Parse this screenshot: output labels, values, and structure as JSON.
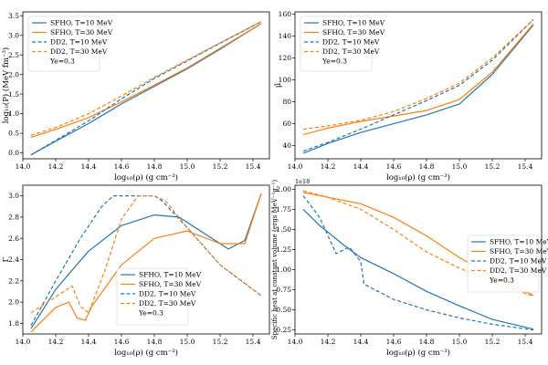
{
  "colors": {
    "blue": "#1f77b4",
    "orange": "#ff7f0e"
  },
  "legend_entries": [
    {
      "label": "SFHO, T=10 MeV",
      "color": "#1f77b4",
      "dash": false
    },
    {
      "label": "SFHO, T=30 MeV",
      "color": "#ff7f0e",
      "dash": false
    },
    {
      "label": "DD2, T=10 MeV",
      "color": "#1f77b4",
      "dash": true
    },
    {
      "label": "DD2, T=30 MeV",
      "color": "#ff7f0e",
      "dash": true
    }
  ],
  "legend_note": "Ye=0.3",
  "chart_data": [
    {
      "type": "line",
      "xlabel": "log₁₀(ρ) (g cm⁻³)",
      "ylabel": "log₁₀(P) (MeV fm⁻³)",
      "xlim": [
        14.0,
        15.5
      ],
      "ylim": [
        -0.15,
        3.6
      ],
      "xticks": [
        "14.0",
        "14.2",
        "14.4",
        "14.6",
        "14.8",
        "15.0",
        "15.2",
        "15.4"
      ],
      "yticks": [
        "0.0",
        "0.5",
        "1.0",
        "1.5",
        "2.0",
        "2.5",
        "3.0",
        "3.5"
      ],
      "legend_position": "upper-left",
      "series": [
        {
          "name": "SFHO, T=10 MeV",
          "x": [
            14.05,
            14.2,
            14.4,
            14.6,
            14.8,
            15.0,
            15.2,
            15.45
          ],
          "y": [
            -0.05,
            0.3,
            0.75,
            1.25,
            1.7,
            2.15,
            2.65,
            3.3
          ]
        },
        {
          "name": "SFHO, T=30 MeV",
          "x": [
            14.05,
            14.2,
            14.4,
            14.6,
            14.8,
            15.0,
            15.2,
            15.45
          ],
          "y": [
            0.4,
            0.6,
            0.9,
            1.3,
            1.73,
            2.17,
            2.67,
            3.3
          ]
        },
        {
          "name": "DD2, T=10 MeV",
          "x": [
            14.05,
            14.2,
            14.4,
            14.6,
            14.8,
            15.0,
            15.2,
            15.45
          ],
          "y": [
            -0.05,
            0.32,
            0.82,
            1.38,
            1.9,
            2.35,
            2.8,
            3.35
          ]
        },
        {
          "name": "DD2, T=30 MeV",
          "x": [
            14.05,
            14.2,
            14.4,
            14.6,
            14.8,
            15.0,
            15.2,
            15.45
          ],
          "y": [
            0.45,
            0.65,
            1.0,
            1.45,
            1.93,
            2.37,
            2.81,
            3.35
          ]
        }
      ]
    },
    {
      "type": "line",
      "xlabel": "log₁₀(ρ) (g cm⁻³)",
      "ylabel": "μ̂",
      "xlim": [
        14.0,
        15.5
      ],
      "ylim": [
        28,
        162
      ],
      "xticks": [
        "14.0",
        "14.2",
        "14.4",
        "14.6",
        "14.8",
        "15.0",
        "15.2",
        "15.4"
      ],
      "yticks": [
        "40",
        "60",
        "80",
        "100",
        "120",
        "140",
        "160"
      ],
      "legend_position": "upper-left",
      "series": [
        {
          "name": "SFHO, T=10 MeV",
          "x": [
            14.05,
            14.2,
            14.4,
            14.6,
            14.8,
            15.0,
            15.2,
            15.45
          ],
          "y": [
            33,
            42,
            52,
            60,
            68,
            78,
            105,
            150
          ]
        },
        {
          "name": "SFHO, T=30 MeV",
          "x": [
            14.05,
            14.2,
            14.4,
            14.6,
            14.8,
            15.0,
            15.2,
            15.45
          ],
          "y": [
            50,
            56,
            62,
            67,
            72,
            82,
            107,
            151
          ]
        },
        {
          "name": "DD2, T=10 MeV",
          "x": [
            14.05,
            14.2,
            14.4,
            14.6,
            14.8,
            15.0,
            15.2,
            15.45
          ],
          "y": [
            35,
            43,
            55,
            68,
            81,
            95,
            118,
            155
          ]
        },
        {
          "name": "DD2, T=30 MeV",
          "x": [
            14.05,
            14.2,
            14.4,
            14.6,
            14.8,
            15.0,
            15.2,
            15.45
          ],
          "y": [
            55,
            58,
            63,
            71,
            83,
            97,
            120,
            155
          ]
        }
      ]
    },
    {
      "type": "line",
      "xlabel": "log₁₀(ρ) (g cm⁻³)",
      "ylabel": "Γ",
      "xlim": [
        14.0,
        15.5
      ],
      "ylim": [
        1.7,
        3.1
      ],
      "xticks": [
        "14.0",
        "14.2",
        "14.4",
        "14.6",
        "14.8",
        "15.0",
        "15.2",
        "15.4"
      ],
      "yticks": [
        "1.8",
        "2.0",
        "2.2",
        "2.4",
        "2.6",
        "2.8",
        "3.0"
      ],
      "legend_position": "lower-center",
      "series": [
        {
          "name": "SFHO, T=10 MeV",
          "x": [
            14.05,
            14.2,
            14.4,
            14.6,
            14.8,
            14.95,
            15.1,
            15.25,
            15.35,
            15.45
          ],
          "y": [
            1.75,
            2.12,
            2.48,
            2.72,
            2.82,
            2.8,
            2.65,
            2.5,
            2.58,
            3.02
          ]
        },
        {
          "name": "SFHO, T=30 MeV",
          "x": [
            14.05,
            14.2,
            14.28,
            14.33,
            14.38,
            14.42,
            14.6,
            14.8,
            15.0,
            15.2,
            15.35,
            15.45
          ],
          "y": [
            1.72,
            1.95,
            2.0,
            1.85,
            1.83,
            1.96,
            2.35,
            2.6,
            2.67,
            2.55,
            2.55,
            3.02
          ]
        },
        {
          "name": "DD2, T=10 MeV",
          "x": [
            14.05,
            14.2,
            14.35,
            14.48,
            14.55,
            14.62,
            14.8,
            14.85,
            15.0,
            15.2,
            15.45
          ],
          "y": [
            1.78,
            2.2,
            2.6,
            2.9,
            3.0,
            3.0,
            3.0,
            2.95,
            2.7,
            2.35,
            2.06
          ]
        },
        {
          "name": "DD2, T=30 MeV",
          "x": [
            14.05,
            14.2,
            14.3,
            14.35,
            14.4,
            14.5,
            14.6,
            14.7,
            14.8,
            14.87,
            15.0,
            15.2,
            15.45
          ],
          "y": [
            1.9,
            2.05,
            2.15,
            1.96,
            1.9,
            2.3,
            2.78,
            3.0,
            3.0,
            2.95,
            2.7,
            2.35,
            2.06
          ]
        }
      ]
    },
    {
      "type": "line",
      "xlabel": "log₁₀(ρ) (g cm⁻³)",
      "ylabel": "Specific heat at constant volume (ergs MeV⁻¹g⁻¹)",
      "y_offset_label": "1e18",
      "xlim": [
        14.0,
        15.5
      ],
      "ylim": [
        0.2,
        2.05
      ],
      "xticks": [
        "14.0",
        "14.2",
        "14.4",
        "14.6",
        "14.8",
        "15.0",
        "15.2",
        "15.4"
      ],
      "yticks": [
        "0.25",
        "0.50",
        "0.75",
        "1.00",
        "1.25",
        "1.50",
        "1.75",
        "2.00"
      ],
      "legend_position": "right",
      "series": [
        {
          "name": "SFHO, T=10 MeV",
          "x": [
            14.05,
            14.15,
            14.3,
            14.4,
            14.6,
            14.8,
            15.0,
            15.2,
            15.45
          ],
          "y": [
            1.75,
            1.55,
            1.3,
            1.15,
            0.95,
            0.73,
            0.55,
            0.38,
            0.26
          ]
        },
        {
          "name": "SFHO, T=30 MeV",
          "x": [
            14.05,
            14.2,
            14.4,
            14.6,
            14.8,
            15.0,
            15.2,
            15.45
          ],
          "y": [
            1.96,
            1.9,
            1.82,
            1.65,
            1.42,
            1.15,
            0.92,
            0.68
          ]
        },
        {
          "name": "DD2, T=10 MeV",
          "x": [
            14.05,
            14.15,
            14.25,
            14.33,
            14.4,
            14.42,
            14.6,
            14.8,
            15.0,
            15.2,
            15.45
          ],
          "y": [
            1.92,
            1.65,
            1.2,
            1.28,
            1.1,
            0.82,
            0.63,
            0.5,
            0.4,
            0.32,
            0.25
          ]
        },
        {
          "name": "DD2, T=30 MeV",
          "x": [
            14.05,
            14.2,
            14.4,
            14.6,
            14.8,
            15.0,
            15.2,
            15.45
          ],
          "y": [
            1.98,
            1.9,
            1.75,
            1.5,
            1.22,
            1.02,
            0.85,
            0.67
          ]
        }
      ]
    }
  ]
}
